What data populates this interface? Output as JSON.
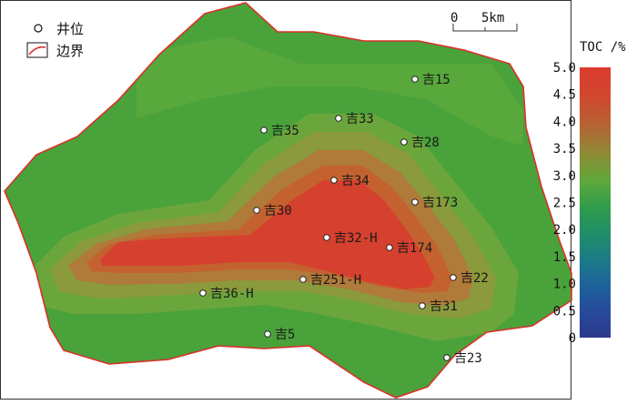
{
  "legend": {
    "well_label": "井位",
    "boundary_label": "边界"
  },
  "scale_bar": {
    "start_label": "0",
    "end_label": "5km"
  },
  "colorbar": {
    "title": "TOC /%",
    "ticks": [
      "5.0",
      "4.5",
      "4.0",
      "3.5",
      "3.0",
      "2.5",
      "2.0",
      "1.5",
      "1.0",
      "0.5",
      "0"
    ],
    "colors": [
      "#d93a2f",
      "#cf4a2f",
      "#b86232",
      "#9c7e35",
      "#7f9a36",
      "#4fa83a",
      "#2f9c52",
      "#1f8a7a",
      "#1e6aa0",
      "#234fa0",
      "#2c3c8c"
    ]
  },
  "wells": [
    {
      "label": "吉15"
    },
    {
      "label": "吉33"
    },
    {
      "label": "吉35"
    },
    {
      "label": "吉28"
    },
    {
      "label": "吉34"
    },
    {
      "label": "吉173"
    },
    {
      "label": "吉30"
    },
    {
      "label": "吉32-H"
    },
    {
      "label": "吉174"
    },
    {
      "label": "吉22"
    },
    {
      "label": "吉251-H"
    },
    {
      "label": "吉36-H"
    },
    {
      "label": "吉31"
    },
    {
      "label": "吉5"
    },
    {
      "label": "吉23"
    }
  ],
  "colors": {
    "boundary": "#d9302a",
    "outer_green": "#4aa33a",
    "mid_green": "#6aab3e",
    "olive": "#8a9a3c",
    "brown": "#b07a3a",
    "orange_brown": "#c4622f",
    "core_red": "#d6402e"
  }
}
